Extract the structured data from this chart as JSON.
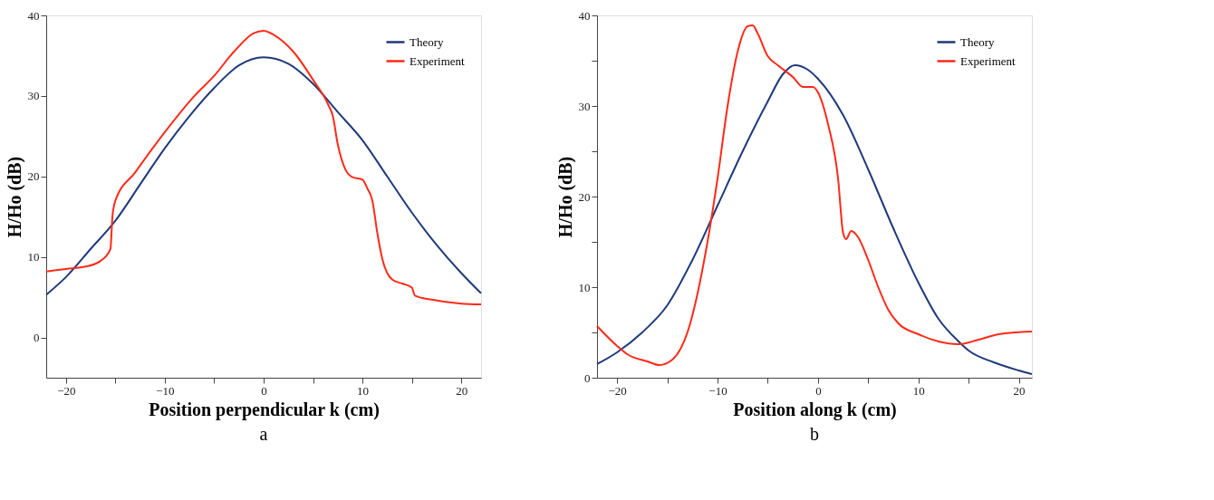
{
  "chart_data": [
    {
      "type": "line",
      "xlabel": "Position perpendicular k (cm)",
      "ylabel": "H/Ho (dB)",
      "annotations": [
        "a"
      ],
      "legend": "top right",
      "grid": false,
      "xlim": [
        -22,
        22
      ],
      "ylim": [
        -5,
        40
      ],
      "xticks": [
        -20,
        {
          "value": -15,
          "label": null
        },
        -10,
        {
          "value": -5,
          "label": null
        },
        0,
        {
          "value": 5,
          "label": null
        },
        10,
        {
          "value": 15,
          "label": null
        },
        20
      ],
      "yticks": [
        0,
        10,
        20,
        30,
        40
      ],
      "series": [
        {
          "name": "Theory",
          "color": "#1f3a7a",
          "x": [
            -22,
            -20,
            -17.5,
            -15,
            -12.5,
            -10,
            -7.5,
            -5,
            -2.5,
            0,
            2.5,
            5,
            7.5,
            10,
            12.5,
            15,
            17.5,
            20,
            22
          ],
          "values": [
            5.3,
            7.5,
            11,
            14.5,
            19,
            23.5,
            27.5,
            31,
            33.8,
            34.8,
            34,
            31.5,
            28,
            24.5,
            20,
            15.5,
            11.5,
            8,
            5.5
          ]
        },
        {
          "name": "Experiment",
          "color": "#ff2a1a",
          "x": [
            -22,
            -20,
            -18,
            -16.5,
            -15.5,
            -15.3,
            -15,
            -13,
            -10,
            -7,
            -5,
            -3,
            -1,
            0,
            1,
            3,
            5,
            6.5,
            7,
            7.5,
            8.3,
            9,
            10,
            10.5,
            11,
            11.5,
            12,
            13,
            14,
            15,
            15.3,
            17,
            20,
            22
          ],
          "values": [
            8.2,
            8.5,
            8.8,
            9.5,
            11,
            15,
            17,
            20.5,
            25.5,
            30,
            32.5,
            35.5,
            37.8,
            38.1,
            37.6,
            35.5,
            32,
            29,
            27.5,
            24,
            20.8,
            19.9,
            19.6,
            18.5,
            17,
            13,
            9.8,
            7.2,
            6.7,
            6.2,
            5.2,
            4.7,
            4.2,
            4.1
          ]
        }
      ]
    },
    {
      "type": "line",
      "xlabel": "Position along k (cm)",
      "ylabel": "H/Ho (dB)",
      "annotations": [
        "b"
      ],
      "legend": "top right",
      "grid": false,
      "xlim": [
        -22,
        21.3
      ],
      "ylim": [
        0,
        40
      ],
      "xticks": [
        -20,
        {
          "value": -15,
          "label": null
        },
        -10,
        {
          "value": -5,
          "label": null
        },
        0,
        {
          "value": 5,
          "label": null
        },
        10,
        {
          "value": 15,
          "label": null
        },
        20
      ],
      "yticks": [
        0,
        {
          "value": 5,
          "label": null
        },
        10,
        {
          "value": 15,
          "label": null
        },
        20,
        {
          "value": 25,
          "label": null
        },
        30,
        {
          "value": 35,
          "label": null
        },
        40
      ],
      "series": [
        {
          "name": "Theory",
          "color": "#1f3a7a",
          "x": [
            -22,
            -20,
            -17.5,
            -15,
            -12.5,
            -10,
            -7.5,
            -5,
            -3.5,
            -2.3,
            -1,
            0,
            2.5,
            5,
            7.5,
            10,
            12,
            14,
            15,
            17.5,
            20,
            21.3
          ],
          "values": [
            1.5,
            2.8,
            5,
            8,
            13,
            19,
            25,
            30.5,
            33.5,
            34.5,
            34,
            33,
            29,
            23,
            16.5,
            10.5,
            6.5,
            4,
            3,
            1.7,
            0.8,
            0.4
          ]
        },
        {
          "name": "Experiment",
          "color": "#ff2a1a",
          "x": [
            -22,
            -20,
            -19,
            -17,
            -15.8,
            -14.5,
            -13,
            -11,
            -10,
            -9,
            -8,
            -7,
            -6.5,
            -6,
            -5,
            -4,
            -2.5,
            -1.5,
            -0.5,
            0,
            1,
            2,
            2.5,
            2.8,
            3.3,
            4,
            5,
            6,
            7,
            8,
            10,
            12,
            14,
            16,
            18,
            21.3
          ],
          "values": [
            5.7,
            3.5,
            2.6,
            1.8,
            1.4,
            2,
            5,
            15,
            22,
            30,
            36,
            38.8,
            38.9,
            38,
            35.5,
            34.5,
            33.2,
            32.1,
            32.1,
            31.5,
            28,
            22,
            16,
            15.3,
            16.2,
            15.5,
            13,
            10,
            7.5,
            6,
            4.8,
            4,
            3.7,
            4.2,
            4.8,
            5.1
          ]
        }
      ]
    }
  ]
}
